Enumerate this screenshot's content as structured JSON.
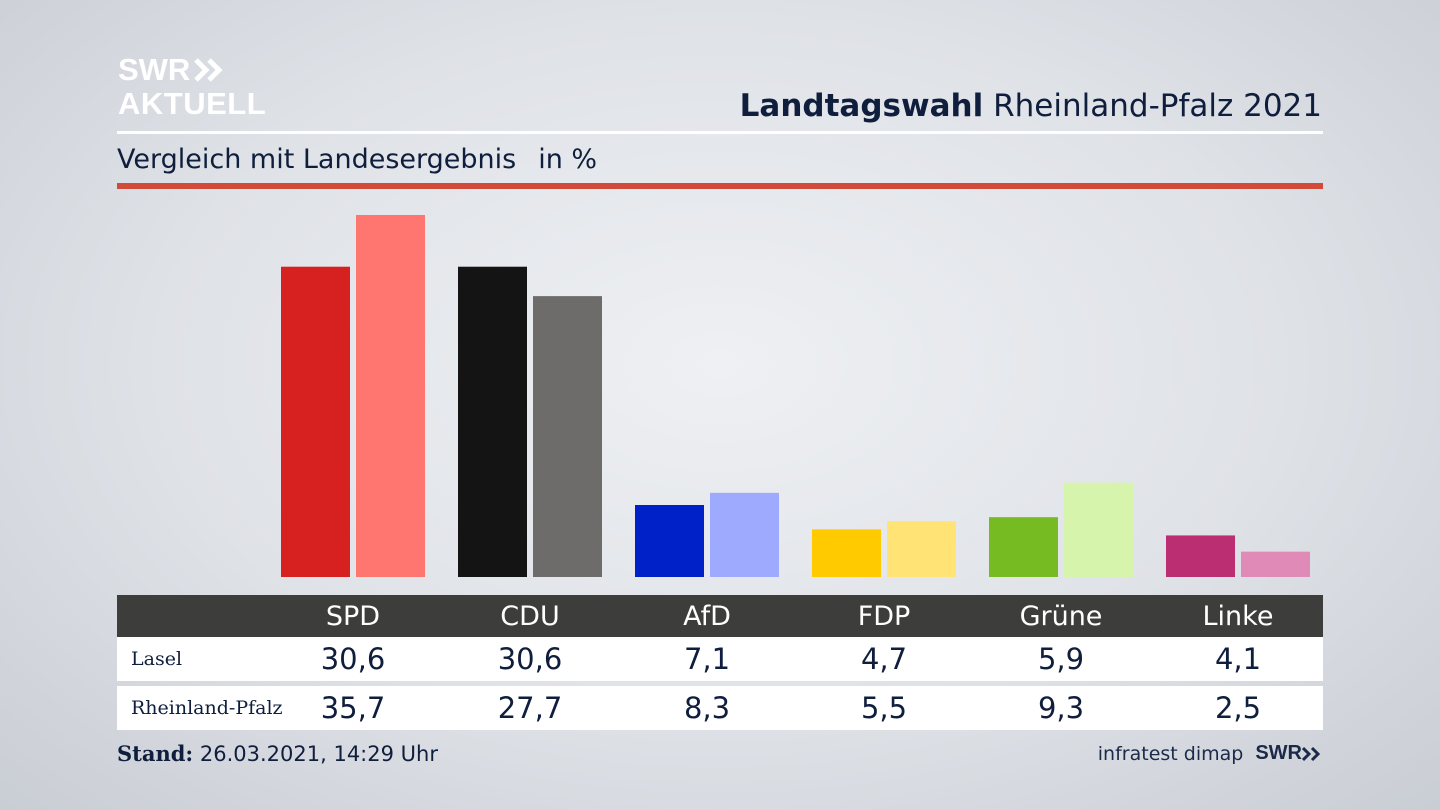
{
  "logo": {
    "line1": "SWR",
    "line2": "AKTUELL"
  },
  "title": {
    "bold": "Landtagswahl",
    "rest": "Rheinland-Pfalz 2021"
  },
  "subtitle": {
    "text": "Vergleich mit Landesergebnis",
    "unit": "in %"
  },
  "table": {
    "rows": [
      {
        "label": "Lasel",
        "values": [
          "30,6",
          "30,6",
          "7,1",
          "4,7",
          "5,9",
          "4,1"
        ]
      },
      {
        "label": "Rheinland-Pfalz",
        "values": [
          "35,7",
          "27,7",
          "8,3",
          "5,5",
          "9,3",
          "2,5"
        ]
      }
    ]
  },
  "footer": {
    "stand_label": "Stand:",
    "stand_value": "26.03.2021, 14:29 Uhr",
    "source": "infratest dimap",
    "brand": "SWR"
  },
  "chart_data": {
    "type": "bar",
    "categories": [
      "SPD",
      "CDU",
      "AfD",
      "FDP",
      "Grüne",
      "Linke"
    ],
    "series": [
      {
        "name": "Lasel",
        "values": [
          30.6,
          30.6,
          7.1,
          4.7,
          5.9,
          4.1
        ],
        "colors": [
          "#d72020",
          "#141414",
          "#0020c8",
          "#ffcb00",
          "#77bb22",
          "#bb2e72"
        ]
      },
      {
        "name": "Rheinland-Pfalz",
        "values": [
          35.7,
          27.7,
          8.3,
          5.5,
          9.3,
          2.5
        ],
        "colors": [
          "#ff7570",
          "#6e6c6a",
          "#9daafd",
          "#ffe374",
          "#d6f4ab",
          "#e08ab7"
        ]
      }
    ],
    "ylim": [
      0,
      35.7
    ]
  }
}
